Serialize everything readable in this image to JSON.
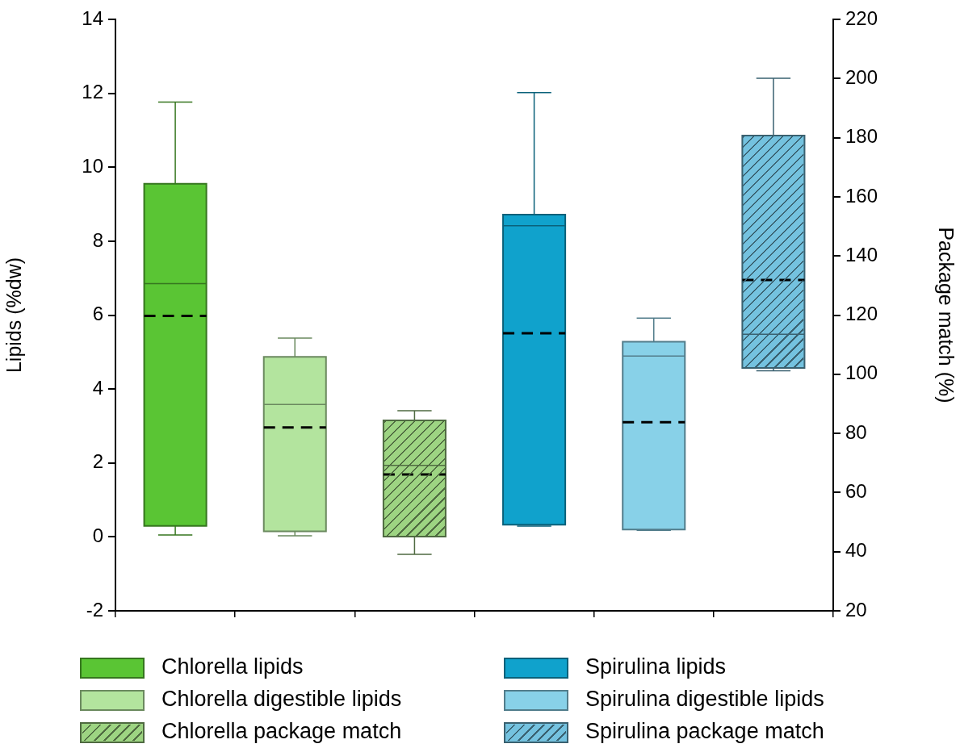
{
  "chart_data": {
    "type": "box",
    "categories": [
      null,
      null,
      null,
      null,
      null,
      null
    ],
    "ylabel": "Lipids (%dw)",
    "y2label": "Package match (%)",
    "ylim": [
      -2,
      14
    ],
    "yticks": [
      -2,
      0,
      2,
      4,
      6,
      8,
      10,
      12,
      14
    ],
    "y2lim": [
      20,
      220
    ],
    "y2ticks": [
      20,
      40,
      60,
      80,
      100,
      120,
      140,
      160,
      180,
      200,
      220
    ],
    "grid": false,
    "legend": "bottom",
    "series": [
      {
        "name": "Chlorella lipids",
        "color": "#5ac534",
        "boxes": [
          {
            "low": 0.05,
            "q1": 0.3,
            "median": 6.85,
            "q3": 9.55,
            "high": 11.76,
            "mean": 5.98
          },
          null,
          null,
          null,
          null,
          null
        ]
      },
      {
        "name": "Chlorella digestible lipids",
        "color": "#b3e49e",
        "boxes": [
          null,
          {
            "low": 0.03,
            "q1": 0.15,
            "median": 3.58,
            "q3": 4.87,
            "high": 5.38,
            "mean": 2.96
          },
          null,
          null,
          null,
          null
        ]
      },
      {
        "name": "Chlorella package match",
        "color": "#9dd482",
        "axis": "y2",
        "boxes": [
          null,
          null,
          {
            "low": 39.1,
            "q1": 45.1,
            "median": 69.2,
            "q3": 84.4,
            "high": 87.7,
            "mean": 66.1
          },
          null,
          null,
          null
        ]
      },
      {
        "name": "Spirulina lipids",
        "color": "#10a2cc",
        "boxes": [
          null,
          null,
          null,
          {
            "low": 0.29,
            "q1": 0.33,
            "median": 8.42,
            "q3": 8.72,
            "high": 12.02,
            "mean": 5.51
          },
          null,
          null
        ]
      },
      {
        "name": "Spirulina digestible lipids",
        "color": "#88d1e8",
        "boxes": [
          null,
          null,
          null,
          null,
          {
            "low": 0.18,
            "q1": 0.2,
            "median": 4.89,
            "q3": 5.28,
            "high": 5.92,
            "mean": 3.1
          },
          null
        ]
      },
      {
        "name": "Spirulina package match",
        "color": "#74c2df",
        "axis": "y2",
        "boxes": [
          null,
          null,
          null,
          null,
          null,
          {
            "low": 101.2,
            "q1": 102.1,
            "median": 113.5,
            "q3": 180.7,
            "high": 200.1,
            "mean": 131.9
          }
        ]
      }
    ]
  }
}
